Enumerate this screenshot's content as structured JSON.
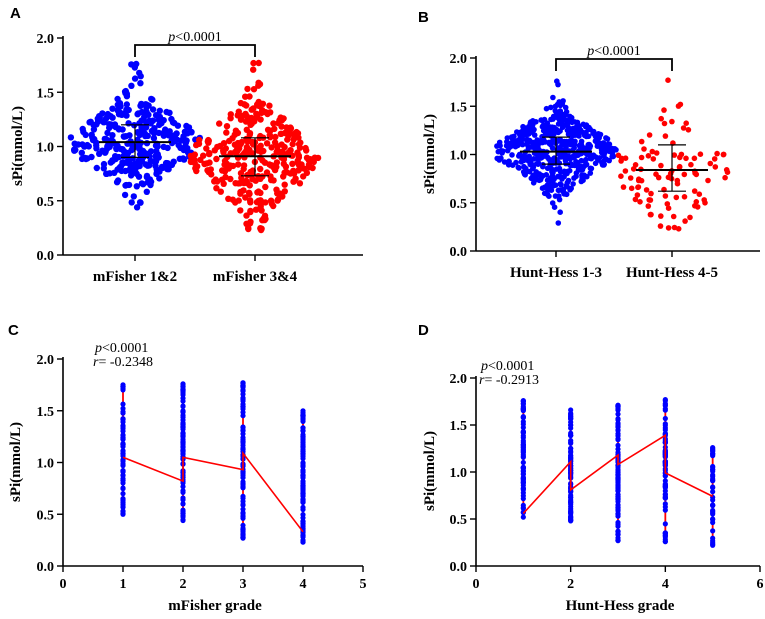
{
  "chart_data": [
    {
      "panel": "A",
      "type": "scatter",
      "subtype": "beeswarm",
      "ylabel": "sPi(mmol/L)",
      "xlabel": "",
      "ylim": [
        0,
        2.0
      ],
      "yticks": [
        "0.0",
        "0.5",
        "1.0",
        "1.5",
        "2.0"
      ],
      "categories": [
        "mFisher 1&2",
        "mFisher 3&4"
      ],
      "colors": [
        "#0000ff",
        "#ff0000"
      ],
      "groups": [
        {
          "name": "mFisher 1&2",
          "n": 330,
          "mean": 1.04,
          "sd": 0.23,
          "min": 0.44,
          "max": 1.76,
          "median": 1.04,
          "q1": 0.9,
          "q3": 1.2
        },
        {
          "name": "mFisher 3&4",
          "n": 330,
          "mean": 0.9,
          "sd": 0.27,
          "min": 0.23,
          "max": 1.77,
          "median": 0.91,
          "q1": 0.73,
          "q3": 1.08
        }
      ],
      "comparison": {
        "p_italic": "p",
        "p_text": "<0.0001"
      }
    },
    {
      "panel": "B",
      "type": "scatter",
      "subtype": "beeswarm",
      "ylabel": "sPi(mmol/L)",
      "xlabel": "",
      "ylim": [
        0,
        2.0
      ],
      "yticks": [
        "0.0",
        "0.5",
        "1.0",
        "1.5",
        "2.0"
      ],
      "categories": [
        "Hunt-Hess 1-3",
        "Hunt-Hess 4-5"
      ],
      "colors": [
        "#0000ff",
        "#ff0000"
      ],
      "groups": [
        {
          "name": "Hunt-Hess 1-3",
          "n": 520,
          "mean": 1.03,
          "sd": 0.22,
          "min": 0.29,
          "max": 1.76,
          "median": 1.03,
          "q1": 0.9,
          "q3": 1.18
        },
        {
          "name": "Hunt-Hess 4-5",
          "n": 100,
          "mean": 0.84,
          "sd": 0.3,
          "min": 0.23,
          "max": 1.77,
          "median": 0.84,
          "q1": 0.62,
          "q3": 1.1
        }
      ],
      "comparison": {
        "p_italic": "p",
        "p_text": "<0.0001"
      }
    },
    {
      "panel": "C",
      "type": "scatter",
      "subtype": "grade-column-scatter",
      "ylabel": "sPi(mmol/L)",
      "xlabel": "mFisher grade",
      "xlim": [
        0,
        5
      ],
      "xticks": [
        "0",
        "1",
        "2",
        "3",
        "4",
        "5"
      ],
      "ylim": [
        0,
        2.0
      ],
      "yticks": [
        "0.0",
        "0.5",
        "1.0",
        "1.5",
        "2.0"
      ],
      "columns": [
        {
          "x": 1,
          "min": 0.5,
          "max": 1.75,
          "n": 70
        },
        {
          "x": 2,
          "min": 0.44,
          "max": 1.76,
          "n": 100
        },
        {
          "x": 3,
          "min": 0.27,
          "max": 1.77,
          "n": 90
        },
        {
          "x": 4,
          "min": 0.23,
          "max": 1.5,
          "n": 100
        }
      ],
      "line": {
        "x": [
          1,
          2,
          2,
          3,
          3,
          4
        ],
        "y": [
          1.05,
          0.82,
          1.05,
          0.93,
          1.09,
          0.33
        ],
        "color": "#ff0000"
      },
      "annotation": {
        "p_italic": "p",
        "p_text": "<0.0001",
        "r_italic": "r",
        "r_text": "= -0.2348"
      }
    },
    {
      "panel": "D",
      "type": "scatter",
      "subtype": "grade-column-scatter",
      "ylabel": "sPi(mmol/L)",
      "xlabel": "Hunt-Hess grade",
      "xlim": [
        0,
        6
      ],
      "xticks": [
        "0",
        "2",
        "4",
        "6"
      ],
      "ylim": [
        0,
        2.0
      ],
      "yticks": [
        "0.0",
        "0.5",
        "1.0",
        "1.5",
        "2.0"
      ],
      "columns": [
        {
          "x": 1,
          "min": 0.52,
          "max": 1.76,
          "n": 70
        },
        {
          "x": 2,
          "min": 0.48,
          "max": 1.66,
          "n": 80
        },
        {
          "x": 3,
          "min": 0.27,
          "max": 1.71,
          "n": 100
        },
        {
          "x": 4,
          "min": 0.26,
          "max": 1.77,
          "n": 80
        },
        {
          "x": 5,
          "min": 0.22,
          "max": 1.26,
          "n": 40
        }
      ],
      "line": {
        "x": [
          1,
          2,
          2,
          3,
          3,
          4,
          4,
          5
        ],
        "y": [
          0.56,
          1.11,
          0.81,
          1.18,
          1.08,
          1.39,
          0.99,
          0.74
        ],
        "color": "#ff0000"
      },
      "annotation": {
        "p_italic": "p",
        "p_text": "<0.0001",
        "r_italic": "r",
        "r_text": "= -0.2913"
      }
    }
  ],
  "panel_labels": [
    "A",
    "B",
    "C",
    "D"
  ]
}
